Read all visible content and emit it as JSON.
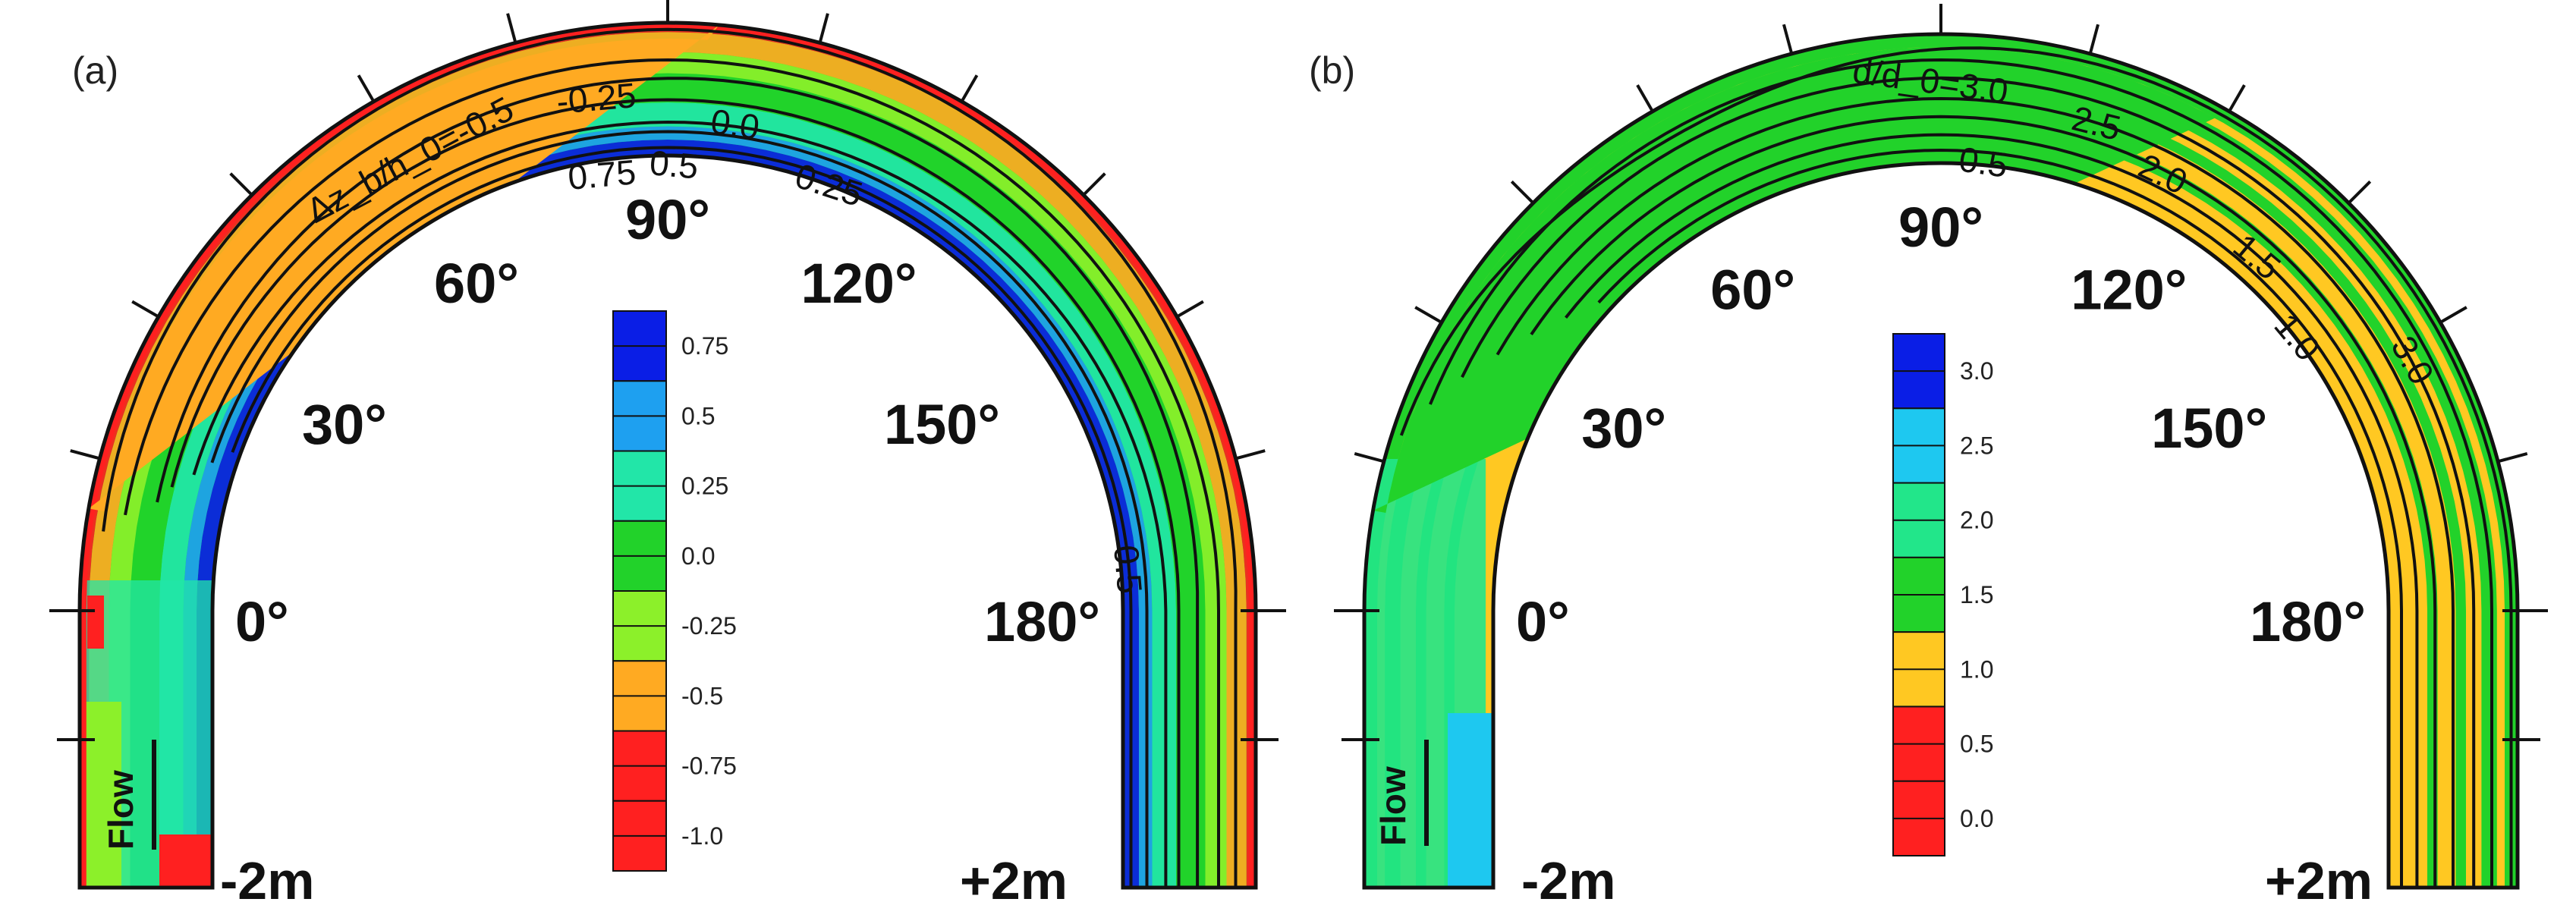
{
  "figure": {
    "panels": [
      {
        "id": "a",
        "label": "(a)",
        "contour_title": "Δz_b/h_0=",
        "contour_labels": [
          "-0.5",
          "-0.25",
          "0.0",
          "0.75",
          "0.5",
          "0.25",
          "0.5"
        ],
        "start_label": "-2m",
        "end_label": "+2m",
        "flow_label": "Flow",
        "colorbar": [
          "0.75",
          "0.5",
          "0.25",
          "0.0",
          "-0.25",
          "-0.5",
          "-0.75",
          "-1.0"
        ]
      },
      {
        "id": "b",
        "label": "(b)",
        "contour_title": "d/d_0=",
        "contour_labels": [
          "3.0",
          "2.5",
          "0.5",
          "2.0",
          "1.5",
          "1.0",
          "3.0"
        ],
        "start_label": "-2m",
        "end_label": "+2m",
        "flow_label": "Flow",
        "colorbar": [
          "3.0",
          "2.5",
          "2.0",
          "1.5",
          "1.0",
          "0.5",
          "0.0"
        ]
      }
    ],
    "angle_labels": [
      "0°",
      "30°",
      "60°",
      "90°",
      "120°",
      "150°",
      "180°"
    ]
  },
  "chart_data": [
    {
      "type": "heatmap",
      "panel": "(a)",
      "variable": "Δz_b/h_0",
      "colorbar_levels": [
        0.75,
        0.5,
        0.25,
        0.0,
        -0.25,
        -0.5,
        -0.75,
        -1.0
      ],
      "colorbar_colors": [
        "#0a1ee6",
        "#1ea0f0",
        "#22e6a8",
        "#22d22a",
        "#8cf02a",
        "#ffaa22",
        "#ff2020",
        "#ff2020"
      ],
      "angle_ticks": [
        0,
        30,
        60,
        90,
        120,
        150,
        180
      ],
      "contour_values": [
        -0.5,
        -0.25,
        0.0,
        0.25,
        0.5,
        0.75
      ]
    },
    {
      "type": "heatmap",
      "panel": "(b)",
      "variable": "d/d_0",
      "colorbar_levels": [
        3.0,
        2.5,
        2.0,
        1.5,
        1.0,
        0.5,
        0.0
      ],
      "colorbar_colors": [
        "#0a1ee6",
        "#1ec8f0",
        "#22e68a",
        "#22d22a",
        "#ffc822",
        "#ff2020",
        "#ff2020"
      ],
      "angle_ticks": [
        0,
        30,
        60,
        90,
        120,
        150,
        180
      ],
      "contour_values": [
        0.5,
        1.0,
        1.5,
        2.0,
        2.5,
        3.0
      ]
    }
  ]
}
